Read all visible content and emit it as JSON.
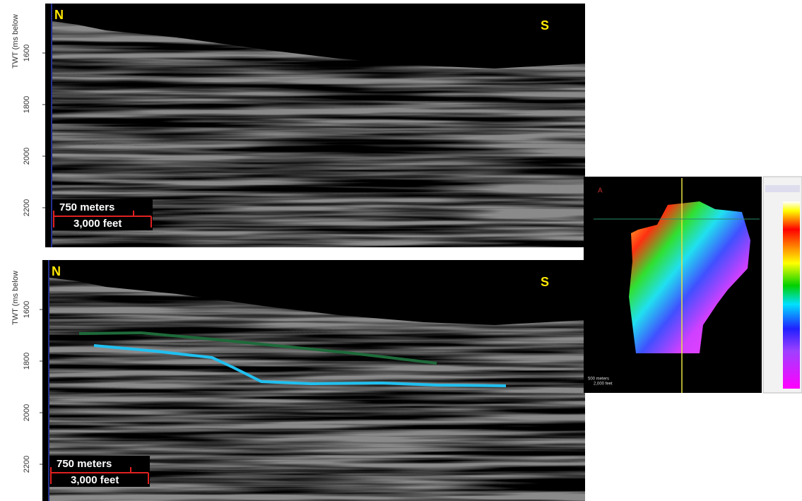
{
  "panels": [
    {
      "compass_left": "N",
      "compass_right": "S",
      "axis_label": "TWT (ms below",
      "axis_ticks": [
        "1600",
        "1800",
        "2000",
        "2200"
      ],
      "scale_bar": [
        "750 meters",
        "3,000 feet"
      ]
    },
    {
      "compass_left": "N",
      "compass_right": "S",
      "axis_label": "TWT (ms below",
      "axis_ticks": [
        "1600",
        "1800",
        "2000",
        "2200"
      ],
      "scale_bar": [
        "750 meters",
        "3,000 feet"
      ]
    }
  ],
  "inset": {
    "scale_bar": [
      "500 meters",
      "2,000 feet"
    ]
  }
}
